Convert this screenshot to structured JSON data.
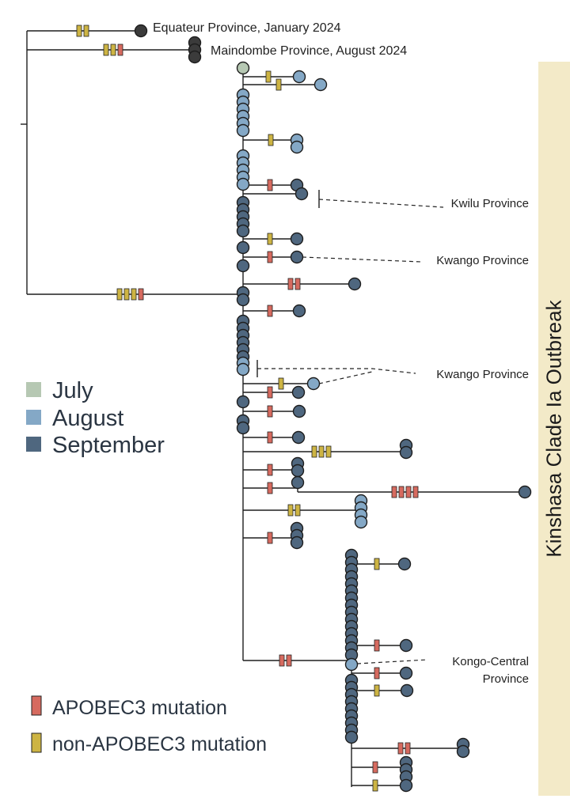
{
  "diagram": {
    "title": "Kinshasa Clade Ia Outbreak",
    "colors": {
      "july": "#b6c8b3",
      "august": "#84a8c6",
      "september": "#4f677f",
      "outgroup": "#3b3b3b",
      "apobec3": "#d66a5f",
      "non_apobec3": "#cdb443",
      "outbreak_band": "#f3eac8"
    },
    "outgroup_labels": {
      "equateur": "Equateur Province, January 2024",
      "maindombe": "Maindombe Province, August 2024"
    },
    "callouts": {
      "kwilu": "Kwilu Province",
      "kwango_1": "Kwango Province",
      "kwango_2": "Kwango Province",
      "kongo_central_line1": "Kongo-Central",
      "kongo_central_line2": "Province"
    },
    "legend": {
      "months": [
        {
          "label": "July",
          "color": "#b6c8b3"
        },
        {
          "label": "August",
          "color": "#84a8c6"
        },
        {
          "label": "September",
          "color": "#4f677f"
        }
      ],
      "mutations": [
        {
          "label": "APOBEC3 mutation",
          "color": "#d66a5f"
        },
        {
          "label": "non-APOBEC3 mutation",
          "color": "#cdb443"
        }
      ]
    }
  }
}
